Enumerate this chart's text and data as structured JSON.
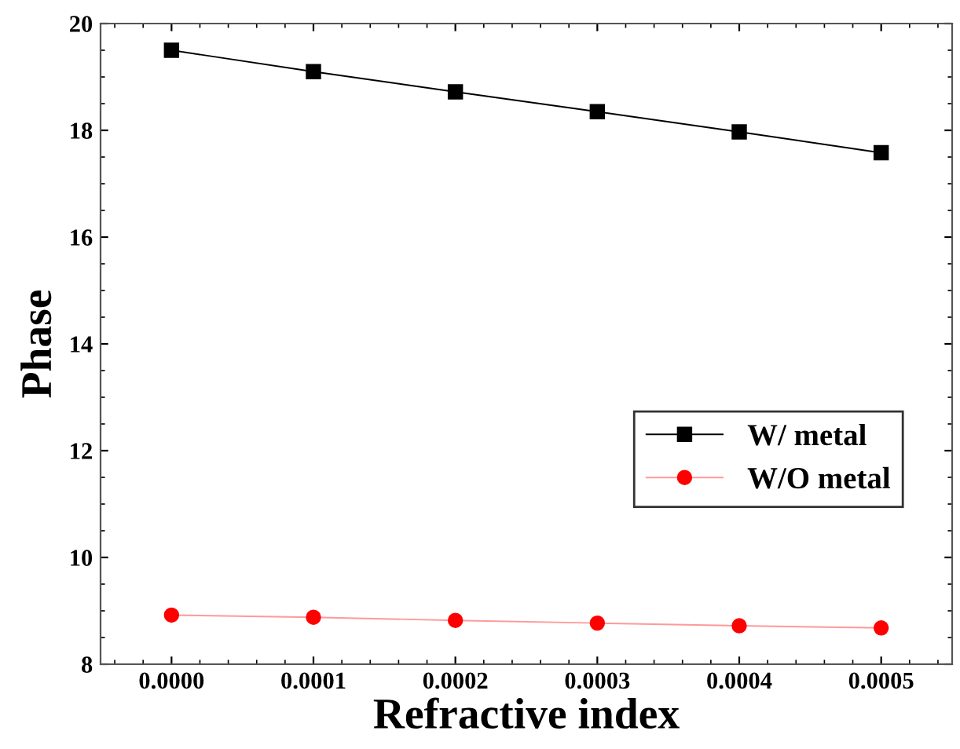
{
  "chart_data": {
    "type": "line",
    "xlabel": "Refractive index",
    "ylabel": "Phase",
    "x": [
      0.0,
      0.0001,
      0.0002,
      0.0003,
      0.0004,
      0.0005
    ],
    "series": [
      {
        "name": "W/ metal",
        "color": "#000000",
        "marker": "square",
        "values": [
          19.5,
          19.1,
          18.72,
          18.35,
          17.97,
          17.58
        ]
      },
      {
        "name": "W/O metal",
        "color": "#ff0000",
        "marker": "circle",
        "values": [
          8.92,
          8.88,
          8.82,
          8.77,
          8.72,
          8.68
        ]
      }
    ],
    "xlim": [
      -5e-05,
      0.00055
    ],
    "ylim": [
      8,
      20
    ],
    "xticks": [
      {
        "value": 0.0,
        "label": "0.0000"
      },
      {
        "value": 0.0001,
        "label": "0.0001"
      },
      {
        "value": 0.0002,
        "label": "0.0002"
      },
      {
        "value": 0.0003,
        "label": "0.0003"
      },
      {
        "value": 0.0004,
        "label": "0.0004"
      },
      {
        "value": 0.0005,
        "label": "0.0005"
      }
    ],
    "yticks": [
      8,
      10,
      12,
      14,
      16,
      18,
      20
    ],
    "grid": false,
    "legend": "right",
    "line_style": "solid"
  }
}
